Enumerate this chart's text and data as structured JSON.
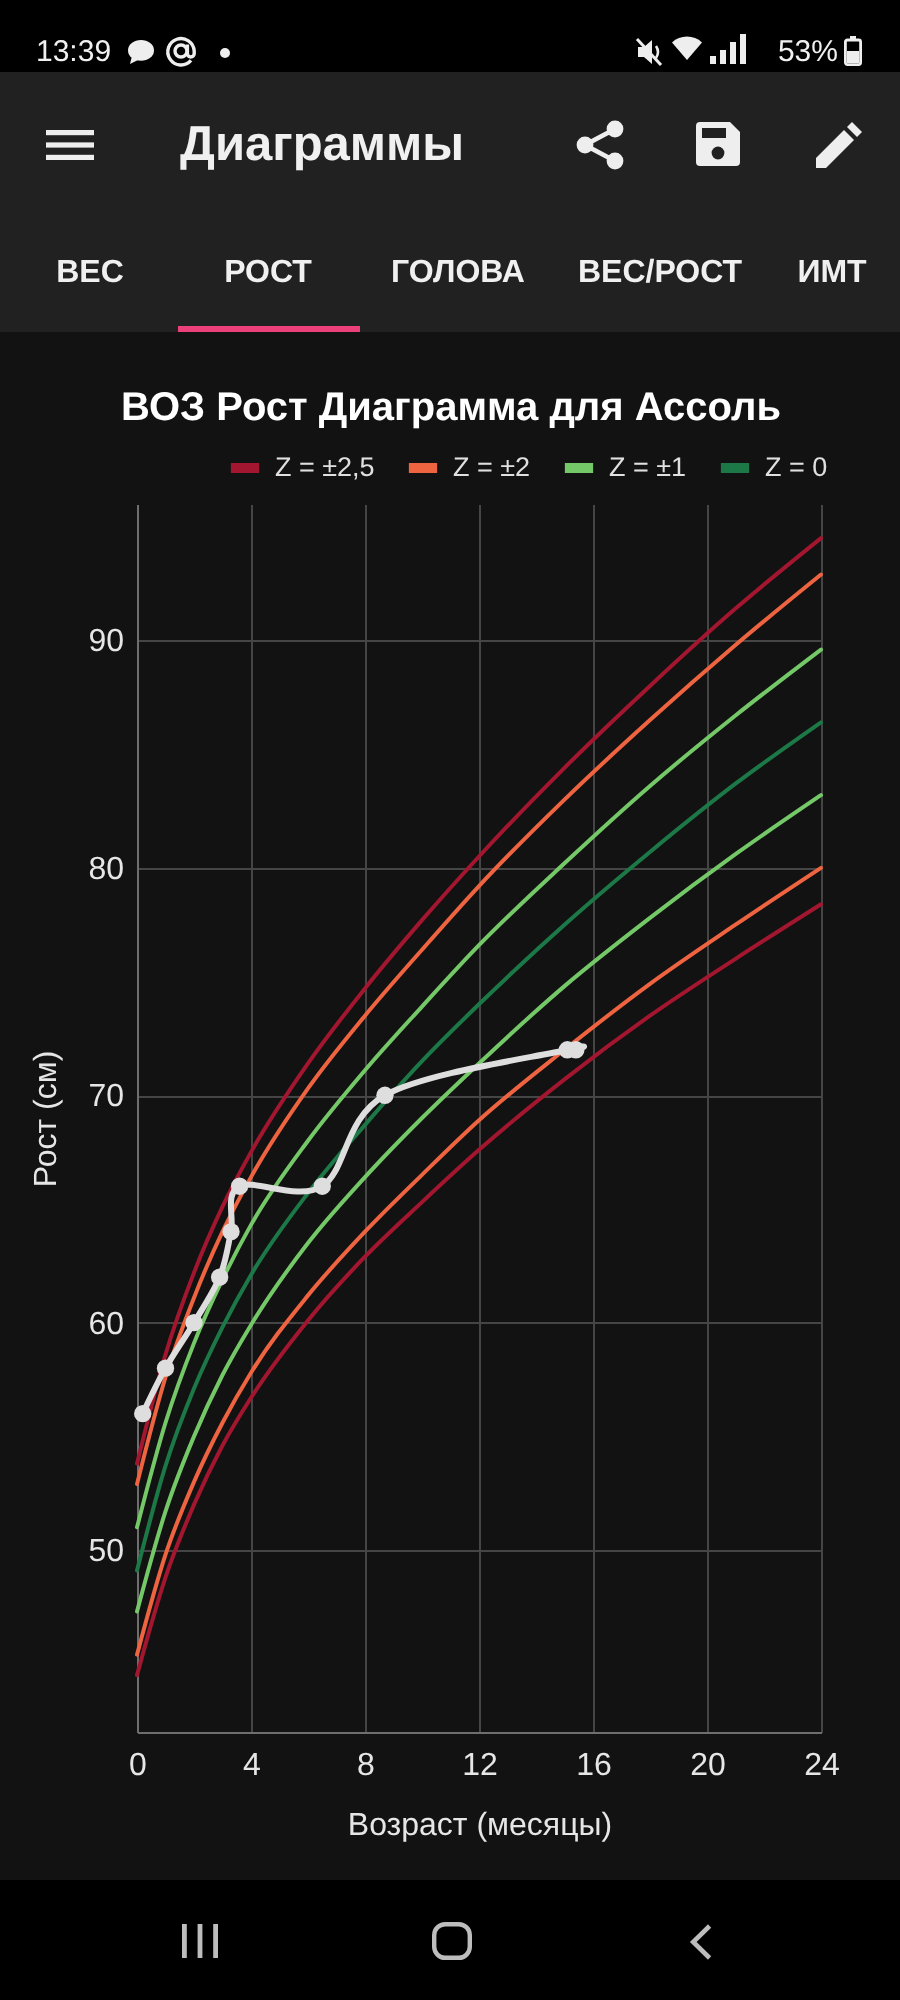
{
  "chart_data": {
    "type": "line",
    "title": "ВОЗ Рост Диаграмма для Ассоль",
    "xlabel": "Возраст (месяцы)",
    "ylabel": "Рост (см)",
    "annotations": [
      "13:39",
      "53%",
      "Диаграммы",
      "ВЕС",
      "РОСТ",
      "ГОЛОВА",
      "ВЕС/РОСТ",
      "ИМТ"
    ],
    "x": [
      0,
      1,
      2,
      3,
      4,
      6,
      8,
      10,
      12,
      15,
      18,
      21,
      24
    ],
    "series": [
      {
        "name": "Z = ±2,5",
        "color": "#a3162f",
        "values": [
          53.8,
          58.6,
          62.2,
          65.1,
          67.5,
          71.4,
          74.7,
          77.7,
          80.5,
          84.4,
          88.0,
          91.4,
          94.5
        ]
      },
      {
        "name": "Z = ±2",
        "color": "#ee6340",
        "values": [
          52.9,
          57.6,
          61.1,
          64.0,
          66.4,
          70.3,
          73.5,
          76.4,
          79.2,
          83.0,
          86.5,
          89.8,
          92.9
        ]
      },
      {
        "name": "Z = ±1",
        "color": "#74c868",
        "values": [
          51.0,
          55.6,
          59.1,
          61.9,
          64.3,
          68.0,
          71.1,
          73.9,
          76.6,
          80.2,
          83.6,
          86.7,
          89.6
        ]
      },
      {
        "name": "Z = 0",
        "color": "#1c7846",
        "values": [
          49.1,
          53.7,
          57.1,
          59.8,
          62.1,
          65.7,
          68.7,
          71.5,
          74.0,
          77.5,
          80.7,
          83.7,
          86.4
        ]
      },
      {
        "color": "#74c868",
        "values": [
          47.3,
          51.7,
          55.0,
          57.7,
          59.9,
          63.5,
          66.4,
          69.0,
          71.4,
          74.8,
          77.8,
          80.6,
          83.2
        ]
      },
      {
        "color": "#ee6340",
        "values": [
          45.4,
          49.8,
          53.0,
          55.6,
          57.8,
          61.2,
          64.0,
          66.5,
          68.9,
          72.0,
          74.9,
          77.5,
          80.0
        ]
      },
      {
        "color": "#a3162f",
        "values": [
          44.5,
          48.8,
          52.0,
          54.6,
          56.7,
          60.1,
          62.9,
          65.3,
          67.6,
          70.7,
          73.5,
          76.0,
          78.4
        ]
      },
      {
        "color": "#dedede",
        "marker": "circle",
        "x": [
          0.2,
          1,
          2,
          2.9,
          3.3,
          3.6,
          6.5,
          8.7,
          15.1,
          15.4
        ],
        "values": [
          56,
          58,
          60,
          62,
          64,
          66,
          66,
          70,
          72,
          72
        ]
      }
    ],
    "xlim": [
      0,
      24
    ],
    "xticks": [
      0,
      4,
      8,
      12,
      16,
      20,
      24
    ],
    "ylim": [
      42,
      96
    ],
    "yticks": [
      50,
      60,
      70,
      80,
      90
    ],
    "grid": true,
    "legend": "top"
  }
}
